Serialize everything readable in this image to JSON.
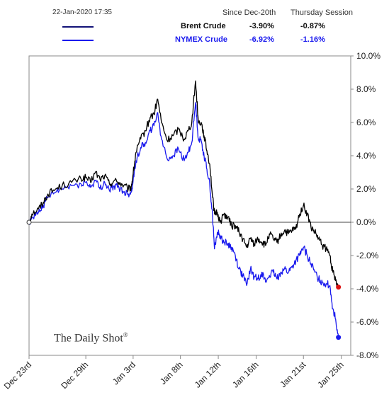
{
  "timestamp": "22-Jan-2020 17:35",
  "header": {
    "col1": "Since Dec-20th",
    "col2": "Thursday Session"
  },
  "legend": [
    {
      "name": "Brent Crude",
      "since": "-3.90%",
      "session": "-0.87%",
      "color": "#000000"
    },
    {
      "name": "NYMEX Crude",
      "since": "-6.92%",
      "session": "-1.16%",
      "color": "#1a1aee"
    }
  ],
  "watermark": "The Daily Shot",
  "watermark_mark": "®",
  "chart_data": {
    "type": "line",
    "y_ticks": [
      "10.0%",
      "8.0%",
      "6.0%",
      "4.0%",
      "2.0%",
      "0.0%",
      "-2.0%",
      "-4.0%",
      "-6.0%",
      "-8.0%"
    ],
    "ylim": [
      -8,
      10
    ],
    "x_ticks": [
      "Dec 23rd",
      "Dec 29th",
      "Jan 3rd",
      "Jan 8th",
      "Jan 12th",
      "Jan 16th",
      "Jan 21st",
      "Jan 25th"
    ],
    "x_tick_days": [
      0,
      6,
      11,
      16,
      20,
      24,
      29,
      33
    ],
    "xlim": [
      0,
      34
    ],
    "grid": "horizontal zero line",
    "y_axis_side": "right",
    "series": [
      {
        "name": "Brent Crude",
        "color": "#000000",
        "end_marker_color": "#dd1111",
        "points": [
          [
            0,
            0
          ],
          [
            0.3,
            0.5
          ],
          [
            1,
            0.8
          ],
          [
            1.5,
            1.2
          ],
          [
            2,
            1.7
          ],
          [
            2.8,
            2.0
          ],
          [
            3.5,
            2.2
          ],
          [
            4.5,
            2.4
          ],
          [
            5.5,
            2.6
          ],
          [
            6,
            2.7
          ],
          [
            6.5,
            2.4
          ],
          [
            7,
            3.0
          ],
          [
            7.5,
            2.6
          ],
          [
            8,
            2.8
          ],
          [
            8.5,
            2.3
          ],
          [
            9,
            2.5
          ],
          [
            9.5,
            2.4
          ],
          [
            10,
            2.2
          ],
          [
            10.5,
            2.0
          ],
          [
            10.8,
            2.1
          ],
          [
            11,
            2.9
          ],
          [
            11.3,
            4.2
          ],
          [
            11.8,
            5.0
          ],
          [
            12.3,
            5.5
          ],
          [
            12.8,
            6.3
          ],
          [
            13.2,
            6.5
          ],
          [
            13.6,
            7.4
          ],
          [
            14,
            6.0
          ],
          [
            14.6,
            4.9
          ],
          [
            15.2,
            5.2
          ],
          [
            15.8,
            5.6
          ],
          [
            16.4,
            5.0
          ],
          [
            16.8,
            5.5
          ],
          [
            17.2,
            6.0
          ],
          [
            17.6,
            8.5
          ],
          [
            17.9,
            6.0
          ],
          [
            18.2,
            6.0
          ],
          [
            18.5,
            5.2
          ],
          [
            18.8,
            4.3
          ],
          [
            19.1,
            3.5
          ],
          [
            19.4,
            1.5
          ],
          [
            19.6,
            0.5
          ],
          [
            19.9,
            0.6
          ],
          [
            20.2,
            0.0
          ],
          [
            20.6,
            0.5
          ],
          [
            21,
            0.3
          ],
          [
            21.4,
            -0.2
          ],
          [
            21.8,
            -0.2
          ],
          [
            22.2,
            -0.6
          ],
          [
            22.6,
            -1.0
          ],
          [
            23,
            -1.5
          ],
          [
            23.4,
            -1.0
          ],
          [
            23.8,
            -1.3
          ],
          [
            24.2,
            -1.0
          ],
          [
            24.6,
            -1.2
          ],
          [
            25,
            -1.4
          ],
          [
            25.4,
            -0.7
          ],
          [
            25.8,
            -1.0
          ],
          [
            26.2,
            -1.2
          ],
          [
            26.6,
            -0.8
          ],
          [
            27,
            -0.5
          ],
          [
            27.4,
            -0.7
          ],
          [
            27.8,
            -0.5
          ],
          [
            28.2,
            -0.4
          ],
          [
            28.6,
            0.5
          ],
          [
            29,
            1.0
          ],
          [
            29.4,
            0.5
          ],
          [
            29.8,
            -0.3
          ],
          [
            30.2,
            -0.6
          ],
          [
            30.6,
            -1.0
          ],
          [
            31,
            -1.4
          ],
          [
            31.4,
            -1.6
          ],
          [
            31.8,
            -2.0
          ],
          [
            32.1,
            -3.0
          ],
          [
            32.4,
            -3.5
          ],
          [
            32.7,
            -3.9
          ]
        ]
      },
      {
        "name": "NYMEX Crude",
        "color": "#1a1aee",
        "end_marker_color": "#1a1aee",
        "points": [
          [
            0,
            0
          ],
          [
            0.3,
            0.3
          ],
          [
            1,
            0.6
          ],
          [
            1.5,
            1.0
          ],
          [
            2,
            1.5
          ],
          [
            2.8,
            1.8
          ],
          [
            3.5,
            2.0
          ],
          [
            4.5,
            2.2
          ],
          [
            5.5,
            2.3
          ],
          [
            6,
            2.4
          ],
          [
            6.5,
            2.1
          ],
          [
            7,
            2.5
          ],
          [
            7.5,
            2.0
          ],
          [
            8,
            2.4
          ],
          [
            8.5,
            1.9
          ],
          [
            9,
            2.2
          ],
          [
            9.5,
            2.1
          ],
          [
            10,
            1.8
          ],
          [
            10.5,
            1.7
          ],
          [
            10.8,
            1.8
          ],
          [
            11,
            2.5
          ],
          [
            11.3,
            3.7
          ],
          [
            11.8,
            4.5
          ],
          [
            12.3,
            4.8
          ],
          [
            12.8,
            5.5
          ],
          [
            13.2,
            5.8
          ],
          [
            13.6,
            6.6
          ],
          [
            14,
            5.0
          ],
          [
            14.6,
            3.8
          ],
          [
            15.2,
            4.0
          ],
          [
            15.8,
            4.4
          ],
          [
            16.4,
            3.7
          ],
          [
            16.8,
            4.2
          ],
          [
            17.2,
            4.8
          ],
          [
            17.6,
            7.2
          ],
          [
            17.9,
            5.0
          ],
          [
            18.2,
            4.9
          ],
          [
            18.5,
            4.0
          ],
          [
            18.8,
            3.2
          ],
          [
            19.1,
            2.3
          ],
          [
            19.4,
            0.3
          ],
          [
            19.6,
            -1.6
          ],
          [
            19.9,
            -0.6
          ],
          [
            20.2,
            -0.8
          ],
          [
            20.6,
            -1.2
          ],
          [
            21,
            -1.3
          ],
          [
            21.4,
            -1.5
          ],
          [
            21.8,
            -2.0
          ],
          [
            22.2,
            -2.8
          ],
          [
            22.6,
            -3.2
          ],
          [
            23,
            -3.8
          ],
          [
            23.4,
            -2.8
          ],
          [
            23.8,
            -3.3
          ],
          [
            24.2,
            -3.4
          ],
          [
            24.6,
            -3.0
          ],
          [
            25,
            -3.6
          ],
          [
            25.4,
            -3.2
          ],
          [
            25.8,
            -3.0
          ],
          [
            26.2,
            -3.4
          ],
          [
            26.6,
            -3.0
          ],
          [
            27,
            -2.8
          ],
          [
            27.4,
            -3.0
          ],
          [
            27.8,
            -2.7
          ],
          [
            28.2,
            -2.3
          ],
          [
            28.6,
            -2.0
          ],
          [
            29,
            -1.5
          ],
          [
            29.4,
            -2.0
          ],
          [
            29.8,
            -2.5
          ],
          [
            30.2,
            -3.0
          ],
          [
            30.6,
            -3.4
          ],
          [
            31,
            -3.6
          ],
          [
            31.4,
            -3.7
          ],
          [
            31.8,
            -3.8
          ],
          [
            32.1,
            -5.2
          ],
          [
            32.4,
            -5.8
          ],
          [
            32.7,
            -6.92
          ]
        ]
      }
    ]
  }
}
